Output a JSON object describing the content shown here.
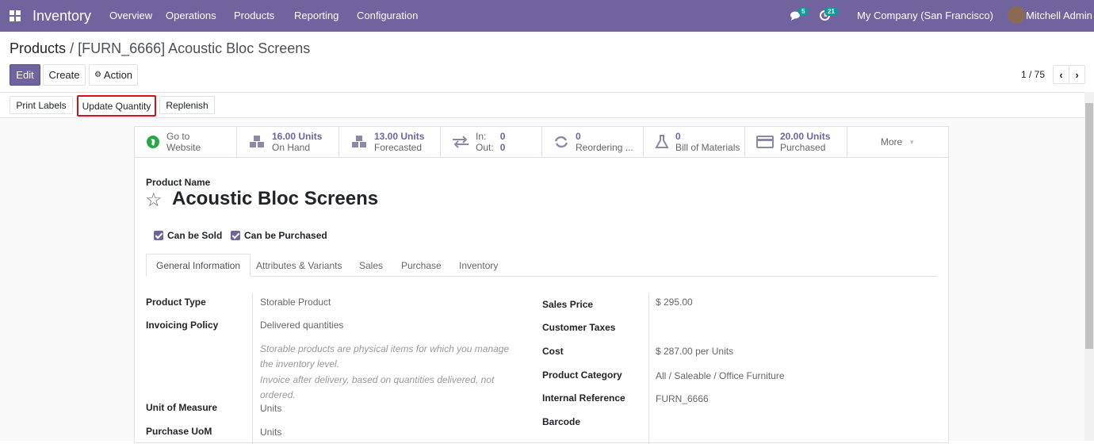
{
  "navbar": {
    "app": "Inventory",
    "menus": [
      "Overview",
      "Operations",
      "Products",
      "Reporting",
      "Configuration"
    ],
    "messages_count": "5",
    "activities_count": "21",
    "company": "My Company (San Francisco)",
    "user": "Mitchell Admin",
    "color": "#71639e"
  },
  "breadcrumb": {
    "parent": "Products",
    "separator": "/",
    "current": "[FURN_6666] Acoustic Bloc Screens"
  },
  "controls": {
    "edit": "Edit",
    "create": "Create",
    "action": "Action",
    "pager": "1 / 75"
  },
  "header_buttons": {
    "print_labels": "Print Labels",
    "update_quantity": "Update Quantity",
    "replenish": "Replenish"
  },
  "stats": [
    {
      "icon": "globe-icon",
      "value": "Go to",
      "label": "Website"
    },
    {
      "icon": "cubes-icon",
      "value": "16.00 Units",
      "label": "On Hand"
    },
    {
      "icon": "cubes-icon",
      "value": "13.00 Units",
      "label": "Forecasted"
    },
    {
      "icon": "exchange-icon",
      "in_label": "In:",
      "in_value": "0",
      "out_label": "Out:",
      "out_value": "0"
    },
    {
      "icon": "refresh-icon",
      "value": "0",
      "label": "Reordering ..."
    },
    {
      "icon": "flask-icon",
      "value": "0",
      "label": "Bill of Materials"
    },
    {
      "icon": "credit-card-icon",
      "value": "20.00 Units",
      "label": "Purchased"
    },
    {
      "icon": "caret-down-icon",
      "label": "More"
    }
  ],
  "product": {
    "name_label": "Product Name",
    "name": "Acoustic Bloc Screens",
    "can_be_sold": "Can be Sold",
    "can_be_purchased": "Can be Purchased"
  },
  "tabs": [
    "General Information",
    "Attributes & Variants",
    "Sales",
    "Purchase",
    "Inventory"
  ],
  "left_fields": {
    "product_type_label": "Product Type",
    "product_type": "Storable Product",
    "invoicing_label": "Invoicing Policy",
    "invoicing": "Delivered quantities",
    "help1": "Storable products are physical items for which you manage the inventory level.",
    "help2": "Invoice after delivery, based on quantities delivered, not ordered.",
    "uom_label": "Unit of Measure",
    "uom": "Units",
    "puom_label": "Purchase UoM",
    "puom": "Units"
  },
  "right_fields": {
    "sales_price_label": "Sales Price",
    "sales_price": "$ 295.00",
    "taxes_label": "Customer Taxes",
    "cost_label": "Cost",
    "cost": "$ 287.00",
    "cost_unit": "per Units",
    "category_label": "Product Category",
    "category": "All / Saleable / Office Furniture",
    "ref_label": "Internal Reference",
    "ref": "FURN_6666",
    "barcode_label": "Barcode"
  }
}
